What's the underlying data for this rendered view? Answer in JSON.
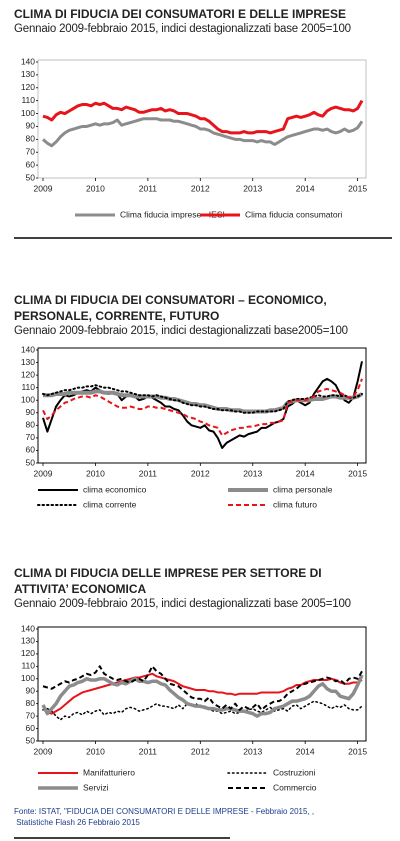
{
  "chart_data": [
    {
      "type": "line",
      "title": "CLIMA DI FIDUCIA DEI CONSUMATORI E DELLE IMPRESE",
      "subtitle": "Gennaio 2009-febbraio 2015, indici destagionalizzati base 2005=100",
      "categories": [
        "2009",
        null,
        null,
        null,
        null,
        null,
        null,
        null,
        null,
        null,
        null,
        null,
        "2010",
        null,
        null,
        null,
        null,
        null,
        null,
        null,
        null,
        null,
        null,
        null,
        "2011",
        null,
        null,
        null,
        null,
        null,
        null,
        null,
        null,
        null,
        null,
        null,
        "2012",
        null,
        null,
        null,
        null,
        null,
        null,
        null,
        null,
        null,
        null,
        null,
        "2013",
        null,
        null,
        null,
        null,
        null,
        null,
        null,
        null,
        null,
        null,
        null,
        "2014",
        null,
        null,
        null,
        null,
        null,
        null,
        null,
        null,
        null,
        null,
        null,
        "2015",
        null
      ],
      "ylim": [
        50,
        140
      ],
      "yticks": [
        50,
        60,
        70,
        80,
        90,
        100,
        110,
        120,
        130,
        140
      ],
      "series": [
        {
          "name": "Clima fiducia imprese - IESI",
          "color": "#8c8c8c",
          "width": 3,
          "dash": "solid",
          "values": [
            80,
            77,
            75,
            78,
            82,
            85,
            87,
            88,
            89,
            90,
            90,
            91,
            92,
            91,
            92,
            92,
            93,
            95,
            91,
            92,
            93,
            94,
            95,
            96,
            96,
            96,
            96,
            95,
            95,
            95,
            94,
            94,
            93,
            92,
            91,
            90,
            88,
            88,
            87,
            85,
            84,
            83,
            82,
            81,
            80,
            80,
            79,
            79,
            79,
            78,
            79,
            78,
            78,
            76,
            78,
            80,
            82,
            83,
            84,
            85,
            86,
            87,
            88,
            88,
            87,
            88,
            86,
            85,
            86,
            88,
            86,
            87,
            89,
            94
          ]
        },
        {
          "name": "Clima fiducia consumatori",
          "color": "#e8141c",
          "width": 3,
          "dash": "solid",
          "values": [
            98,
            97,
            95,
            99,
            101,
            100,
            102,
            104,
            106,
            107,
            107,
            106,
            108,
            107,
            108,
            106,
            104,
            104,
            103,
            105,
            104,
            103,
            101,
            101,
            102,
            103,
            103,
            104,
            102,
            103,
            102,
            100,
            100,
            100,
            99,
            98,
            96,
            96,
            94,
            91,
            88,
            86,
            86,
            85,
            85,
            85,
            86,
            85,
            85,
            86,
            86,
            86,
            85,
            86,
            87,
            88,
            96,
            97,
            98,
            97,
            98,
            99,
            101,
            99,
            98,
            102,
            104,
            105,
            104,
            103,
            103,
            102,
            104,
            110
          ]
        }
      ]
    },
    {
      "type": "line",
      "title": "CLIMA DI FIDUCIA DEI CONSUMATORI – ECONOMICO, PERSONALE, CORRENTE, FUTURO",
      "subtitle": "Gennaio 2009-febbraio 2015, indici destagionalizzati base2005=100",
      "categories": [
        "2009",
        null,
        null,
        null,
        null,
        null,
        null,
        null,
        null,
        null,
        null,
        null,
        "2010",
        null,
        null,
        null,
        null,
        null,
        null,
        null,
        null,
        null,
        null,
        null,
        "2011",
        null,
        null,
        null,
        null,
        null,
        null,
        null,
        null,
        null,
        null,
        null,
        "2012",
        null,
        null,
        null,
        null,
        null,
        null,
        null,
        null,
        null,
        null,
        null,
        "2013",
        null,
        null,
        null,
        null,
        null,
        null,
        null,
        null,
        null,
        null,
        null,
        "2014",
        null,
        null,
        null,
        null,
        null,
        null,
        null,
        null,
        null,
        null,
        null,
        "2015",
        null
      ],
      "ylim": [
        50,
        140
      ],
      "yticks": [
        50,
        60,
        70,
        80,
        90,
        100,
        110,
        120,
        130,
        140
      ],
      "series": [
        {
          "name": "clima economico",
          "color": "#000000",
          "width": 2,
          "dash": "solid",
          "values": [
            86,
            75,
            85,
            95,
            100,
            104,
            103,
            104,
            106,
            107,
            108,
            107,
            110,
            108,
            106,
            105,
            106,
            105,
            100,
            103,
            104,
            103,
            100,
            101,
            103,
            102,
            100,
            98,
            95,
            95,
            93,
            92,
            88,
            83,
            80,
            79,
            78,
            80,
            76,
            75,
            70,
            62,
            66,
            68,
            70,
            72,
            71,
            73,
            74,
            75,
            78,
            78,
            80,
            82,
            83,
            85,
            95,
            97,
            100,
            98,
            96,
            98,
            105,
            110,
            115,
            117,
            115,
            112,
            105,
            100,
            98,
            102,
            115,
            131
          ]
        },
        {
          "name": "clima personale",
          "color": "#8c8c8c",
          "width": 4,
          "dash": "solid",
          "values": [
            104,
            104,
            104,
            105,
            105,
            105,
            106,
            106,
            106,
            106,
            106,
            106,
            107,
            107,
            106,
            106,
            106,
            105,
            104,
            104,
            104,
            103,
            103,
            103,
            103,
            103,
            103,
            102,
            102,
            101,
            101,
            100,
            99,
            98,
            97,
            97,
            96,
            96,
            95,
            94,
            93,
            93,
            93,
            92,
            92,
            92,
            91,
            91,
            91,
            91,
            91,
            91,
            92,
            92,
            93,
            94,
            98,
            99,
            100,
            100,
            100,
            100,
            101,
            101,
            101,
            102,
            103,
            103,
            102,
            102,
            102,
            102,
            103,
            105
          ]
        },
        {
          "name": "clima corrente",
          "color": "#000000",
          "width": 2,
          "dash": "dotted",
          "values": [
            105,
            104,
            105,
            106,
            107,
            108,
            108,
            109,
            110,
            110,
            111,
            111,
            112,
            111,
            110,
            110,
            109,
            108,
            107,
            107,
            106,
            105,
            104,
            104,
            104,
            103,
            104,
            103,
            102,
            101,
            100,
            100,
            98,
            97,
            96,
            96,
            95,
            95,
            94,
            93,
            93,
            92,
            92,
            92,
            91,
            91,
            90,
            90,
            90,
            91,
            91,
            91,
            91,
            91,
            92,
            93,
            99,
            100,
            101,
            101,
            101,
            102,
            103,
            104,
            103,
            103,
            104,
            104,
            103,
            104,
            102,
            102,
            103,
            105
          ]
        },
        {
          "name": "clima futuro",
          "color": "#e8141c",
          "width": 2,
          "dash": "dashed",
          "values": [
            92,
            85,
            88,
            92,
            95,
            98,
            99,
            101,
            102,
            103,
            103,
            102,
            104,
            103,
            101,
            99,
            97,
            95,
            94,
            94,
            95,
            94,
            93,
            93,
            95,
            95,
            94,
            94,
            93,
            92,
            91,
            90,
            89,
            87,
            86,
            85,
            83,
            82,
            80,
            79,
            78,
            72,
            74,
            76,
            77,
            78,
            78,
            79,
            79,
            80,
            81,
            81,
            82,
            82,
            83,
            84,
            98,
            99,
            100,
            100,
            100,
            101,
            103,
            107,
            108,
            109,
            108,
            107,
            106,
            104,
            102,
            103,
            108,
            117
          ]
        }
      ]
    },
    {
      "type": "line",
      "title": "CLIMA DI FIDUCIA DELLE IMPRESE PER SETTORE DI ATTIVITA’ ECONOMICA",
      "subtitle": "Gennaio 2009-febbraio 2015, indici destagionalizzati base 2005=100",
      "categories": [
        "2009",
        null,
        null,
        null,
        null,
        null,
        null,
        null,
        null,
        null,
        null,
        null,
        "2010",
        null,
        null,
        null,
        null,
        null,
        null,
        null,
        null,
        null,
        null,
        null,
        "2011",
        null,
        null,
        null,
        null,
        null,
        null,
        null,
        null,
        null,
        null,
        null,
        "2012",
        null,
        null,
        null,
        null,
        null,
        null,
        null,
        null,
        null,
        null,
        null,
        "2013",
        null,
        null,
        null,
        null,
        null,
        null,
        null,
        null,
        null,
        null,
        null,
        "2014",
        null,
        null,
        null,
        null,
        null,
        null,
        null,
        null,
        null,
        null,
        null,
        "2015",
        null
      ],
      "ylim": [
        50,
        140
      ],
      "yticks": [
        50,
        60,
        70,
        80,
        90,
        100,
        110,
        120,
        130,
        140
      ],
      "series": [
        {
          "name": "Manifatturiero",
          "color": "#e8141c",
          "width": 2,
          "dash": "solid",
          "values": [
            76,
            73,
            72,
            74,
            76,
            79,
            82,
            85,
            87,
            89,
            90,
            91,
            92,
            93,
            94,
            95,
            96,
            97,
            98,
            99,
            100,
            101,
            101,
            102,
            103,
            104,
            102,
            101,
            100,
            99,
            98,
            96,
            94,
            93,
            92,
            91,
            91,
            91,
            90,
            90,
            89,
            89,
            88,
            88,
            87,
            88,
            88,
            88,
            88,
            88,
            89,
            89,
            89,
            89,
            89,
            90,
            92,
            93,
            95,
            95,
            97,
            98,
            99,
            99,
            99,
            99,
            100,
            99,
            97,
            96,
            96,
            97,
            97,
            99
          ]
        },
        {
          "name": "Costruzioni",
          "color": "#000000",
          "width": 1.5,
          "dash": "dotted",
          "values": [
            75,
            76,
            74,
            70,
            67,
            70,
            69,
            72,
            73,
            71,
            74,
            72,
            74,
            75,
            71,
            73,
            72,
            74,
            73,
            76,
            77,
            76,
            74,
            75,
            76,
            78,
            80,
            78,
            78,
            77,
            76,
            79,
            76,
            80,
            78,
            80,
            77,
            78,
            76,
            74,
            74,
            72,
            73,
            74,
            72,
            73,
            74,
            75,
            76,
            74,
            73,
            75,
            77,
            74,
            75,
            76,
            74,
            78,
            79,
            76,
            78,
            80,
            82,
            81,
            80,
            78,
            76,
            78,
            77,
            79,
            76,
            75,
            75,
            78
          ]
        },
        {
          "name": "Servizi",
          "color": "#8c8c8c",
          "width": 3.5,
          "dash": "solid",
          "values": [
            79,
            72,
            76,
            80,
            86,
            90,
            94,
            95,
            97,
            98,
            100,
            99,
            99,
            100,
            100,
            98,
            96,
            95,
            97,
            96,
            98,
            100,
            98,
            98,
            97,
            98,
            98,
            96,
            95,
            91,
            88,
            85,
            83,
            80,
            79,
            78,
            78,
            77,
            76,
            76,
            75,
            75,
            76,
            76,
            75,
            74,
            74,
            73,
            72,
            70,
            72,
            72,
            73,
            76,
            77,
            78,
            80,
            82,
            82,
            83,
            84,
            86,
            90,
            94,
            96,
            92,
            90,
            90,
            86,
            85,
            84,
            88,
            95,
            103
          ]
        },
        {
          "name": "Commercio",
          "color": "#000000",
          "width": 2,
          "dash": "dashed",
          "values": [
            94,
            93,
            92,
            94,
            96,
            98,
            97,
            99,
            100,
            102,
            104,
            103,
            105,
            110,
            104,
            102,
            100,
            99,
            100,
            98,
            97,
            99,
            100,
            98,
            103,
            110,
            106,
            104,
            100,
            96,
            95,
            94,
            91,
            88,
            85,
            84,
            84,
            82,
            85,
            80,
            78,
            76,
            79,
            76,
            80,
            75,
            78,
            76,
            77,
            80,
            75,
            78,
            80,
            82,
            82,
            84,
            88,
            90,
            92,
            95,
            96,
            97,
            98,
            99,
            100,
            101,
            100,
            98,
            99,
            96,
            100,
            101,
            100,
            106
          ]
        }
      ]
    }
  ],
  "source": [
    "Fonte: ISTAT, \"FIDUCIA DEI CONSUMATORI E DELLE IMPRESE - Febbraio 2015, ,",
    " Statistiche Flash 26 Febbraio 2015"
  ]
}
